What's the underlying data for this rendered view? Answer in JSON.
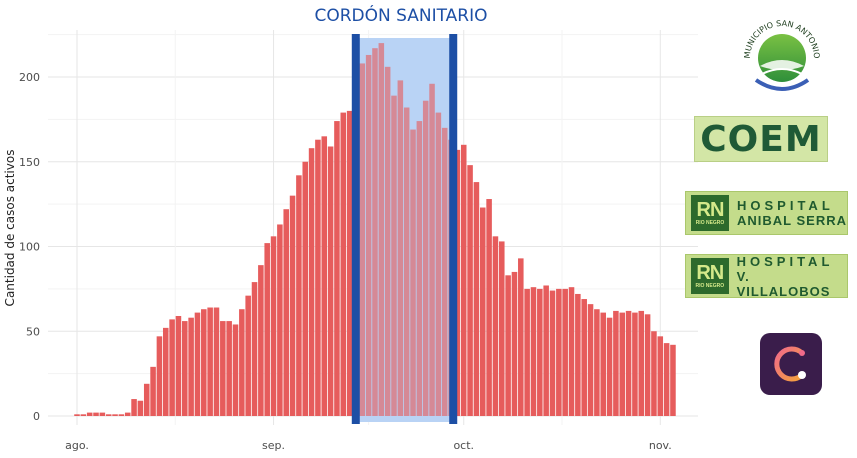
{
  "chart_data": {
    "type": "bar",
    "title": "CORDÓN SANITARIO",
    "ylabel": "Cantidad de casos activos",
    "xlabel": "",
    "ylim": [
      0,
      225
    ],
    "yticks": [
      0,
      50,
      100,
      150,
      200
    ],
    "xticks": [
      {
        "label": "ago.",
        "day": 1
      },
      {
        "label": "sep.",
        "day": 32
      },
      {
        "label": "oct.",
        "day": 62
      },
      {
        "label": "nov.",
        "day": 93
      }
    ],
    "bar_color": "#e65c5c",
    "highlight": {
      "start_day": 45,
      "end_day": 60,
      "fill": "#b9d3f5",
      "border": "#1d4fa5"
    },
    "values": [
      1,
      1,
      2,
      2,
      2,
      1,
      1,
      1,
      2,
      10,
      9,
      19,
      29,
      47,
      52,
      57,
      59,
      56,
      58,
      61,
      63,
      64,
      64,
      56,
      56,
      54,
      63,
      71,
      79,
      89,
      102,
      106,
      113,
      122,
      130,
      142,
      150,
      158,
      163,
      165,
      159,
      174,
      179,
      180,
      192,
      208,
      213,
      217,
      220,
      206,
      189,
      198,
      182,
      169,
      174,
      186,
      196,
      179,
      170,
      163,
      157,
      160,
      148,
      138,
      123,
      128,
      106,
      103,
      83,
      85,
      93,
      75,
      76,
      75,
      77,
      74,
      75,
      75,
      76,
      72,
      69,
      66,
      63,
      61,
      58,
      62,
      61,
      62,
      61,
      62,
      60,
      50,
      47,
      43,
      42
    ]
  },
  "logos": {
    "municipio": "MUNICIPIO SAN ANTONIO",
    "coem": "COEM",
    "hospital1": {
      "line1": "HOSPITAL",
      "line2": "ANIBAL SERRA",
      "badge": "RN",
      "badge_sub": "RIO NEGRO"
    },
    "hospital2": {
      "line1": "HOSPITAL",
      "line2": "V. VILLALOBOS",
      "badge": "RN",
      "badge_sub": "RIO NEGRO"
    }
  },
  "colors": {
    "title": "#1d4fa5",
    "grid": "#ebebeb",
    "app_logo_bg": "#3a1d4b",
    "app_logo_gradient": [
      "#f06a8a",
      "#f4a23a"
    ]
  }
}
